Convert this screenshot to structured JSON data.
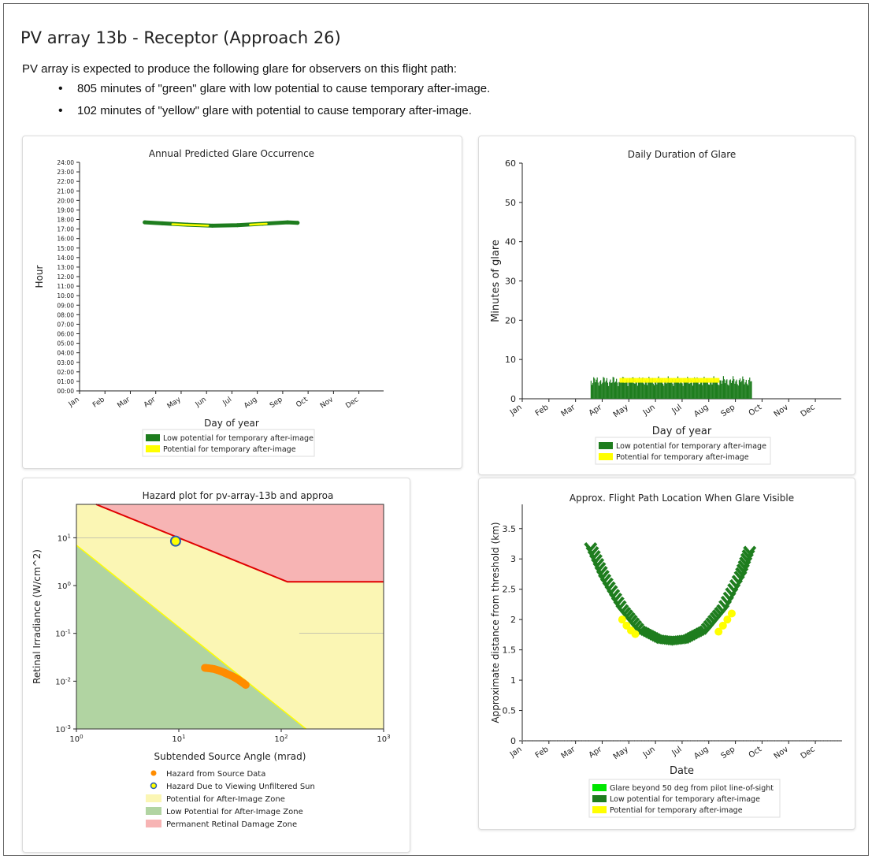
{
  "page": {
    "title": "PV array 13b - Receptor (Approach 26)",
    "intro": "PV array is expected to produce the following glare for observers on this flight path:",
    "bullets": [
      "805 minutes of \"green\" glare with low potential to cause temporary after-image.",
      "102 minutes of \"yellow\" glare with potential to cause temporary after-image."
    ]
  },
  "colors": {
    "green": "#1e7d1e",
    "yellow": "#ffff00",
    "bright_green": "#00e600",
    "orange": "#ff8c00",
    "red": "#e00000"
  },
  "chart_data": [
    {
      "type": "scatter",
      "title": "Annual Predicted Glare Occurrence",
      "xlabel": "Day of year",
      "ylabel": "Hour",
      "x_ticks": [
        "Jan",
        "Feb",
        "Mar",
        "Apr",
        "May",
        "Jun",
        "Jul",
        "Aug",
        "Sep",
        "Oct",
        "Nov",
        "Dec"
      ],
      "y_ticks": [
        "00:00",
        "01:00",
        "02:00",
        "03:00",
        "04:00",
        "05:00",
        "06:00",
        "07:00",
        "08:00",
        "09:00",
        "10:00",
        "11:00",
        "12:00",
        "13:00",
        "14:00",
        "15:00",
        "16:00",
        "17:00",
        "18:00",
        "19:00",
        "20:00",
        "21:00",
        "22:00",
        "23:00",
        "24:00"
      ],
      "xlim": [
        1,
        365
      ],
      "ylim": [
        0,
        24
      ],
      "legend": [
        "Low potential for temporary after-image",
        "Potential for temporary after-image"
      ],
      "legend_position": "bottom",
      "series": [
        {
          "name": "Low potential for temporary after-image",
          "x": [
            79,
            100,
            130,
            160,
            190,
            220,
            250,
            262
          ],
          "y": [
            17.7,
            17.6,
            17.45,
            17.35,
            17.4,
            17.55,
            17.7,
            17.65
          ]
        },
        {
          "name": "Potential for temporary after-image",
          "x": [
            112,
            125,
            140,
            155,
            205,
            215,
            225
          ],
          "y": [
            17.5,
            17.45,
            17.4,
            17.35,
            17.45,
            17.5,
            17.55
          ]
        }
      ]
    },
    {
      "type": "bar",
      "title": "Daily Duration of Glare",
      "xlabel": "Day of year",
      "ylabel": "Minutes of glare",
      "x_ticks": [
        "Jan",
        "Feb",
        "Mar",
        "Apr",
        "May",
        "Jun",
        "Jul",
        "Aug",
        "Sep",
        "Oct",
        "Nov",
        "Dec"
      ],
      "y_ticks": [
        "0",
        "10",
        "20",
        "30",
        "40",
        "50",
        "60"
      ],
      "xlim": [
        1,
        365
      ],
      "ylim": [
        0,
        60
      ],
      "legend": [
        "Low potential for temporary after-image",
        "Potential for temporary after-image"
      ],
      "legend_position": "bottom",
      "series": [
        {
          "name": "Low potential for temporary after-image",
          "day_range": [
            79,
            262
          ],
          "minutes": 4.5
        },
        {
          "name": "Potential for temporary after-image",
          "day_range": [
            112,
            225
          ],
          "minutes": 0.6
        }
      ]
    },
    {
      "type": "scatter",
      "title": "Hazard plot for pv-array-13b and approa",
      "xlabel": "Subtended Source Angle (mrad)",
      "ylabel": "Retinal Irradiance (W/cm^2)",
      "x_scale": "log",
      "y_scale": "log",
      "x_ticks": [
        "10^0",
        "10^1",
        "10^2",
        "10^3"
      ],
      "y_ticks": [
        "10^-3",
        "10^-2",
        "10^-1",
        "10^0",
        "10^1"
      ],
      "xlim": [
        1,
        1000
      ],
      "ylim": [
        0.001,
        50
      ],
      "legend": [
        "Hazard from Source Data",
        "Hazard Due to Viewing Unfiltered Sun",
        "Potential for After-Image Zone",
        "Low Potential for After-Image Zone",
        "Permanent Retinal Damage Zone"
      ],
      "legend_position": "bottom",
      "source_data": {
        "x": [
          18,
          22,
          26,
          30,
          35,
          40,
          46
        ],
        "y": [
          0.019,
          0.018,
          0.016,
          0.014,
          0.012,
          0.01,
          0.008
        ]
      },
      "sun_point": {
        "x": 9.3,
        "y": 8.5
      }
    },
    {
      "type": "scatter",
      "title": "Approx. Flight Path Location When Glare Visible",
      "xlabel": "Date",
      "ylabel": "Approximate distance from threshold (km)",
      "x_ticks": [
        "Jan",
        "Feb",
        "Mar",
        "Apr",
        "May",
        "Jun",
        "Jul",
        "Aug",
        "Sep",
        "Oct",
        "Nov",
        "Dec"
      ],
      "y_ticks": [
        "0",
        "0.5",
        "1",
        "1.5",
        "2",
        "2.5",
        "3",
        "3.5"
      ],
      "xlim": [
        1,
        365
      ],
      "ylim": [
        0,
        3.9
      ],
      "legend": [
        "Glare beyond 50 deg from pilot line-of-sight",
        "Low potential for temporary after-image",
        "Potential for temporary after-image"
      ],
      "legend_position": "bottom",
      "series": [
        {
          "name": "Low potential for temporary after-image",
          "x": [
            79,
            95,
            115,
            135,
            155,
            172,
            190,
            210,
            230,
            250,
            262
          ],
          "y": [
            3.22,
            2.7,
            2.2,
            1.85,
            1.7,
            1.67,
            1.7,
            1.85,
            2.2,
            2.75,
            3.22
          ]
        },
        {
          "name": "Potential for temporary after-image",
          "x": [
            115,
            120,
            125,
            130,
            225,
            230,
            235,
            240
          ],
          "y": [
            2.0,
            1.9,
            1.82,
            1.76,
            1.8,
            1.9,
            2.0,
            2.1
          ]
        }
      ]
    }
  ]
}
